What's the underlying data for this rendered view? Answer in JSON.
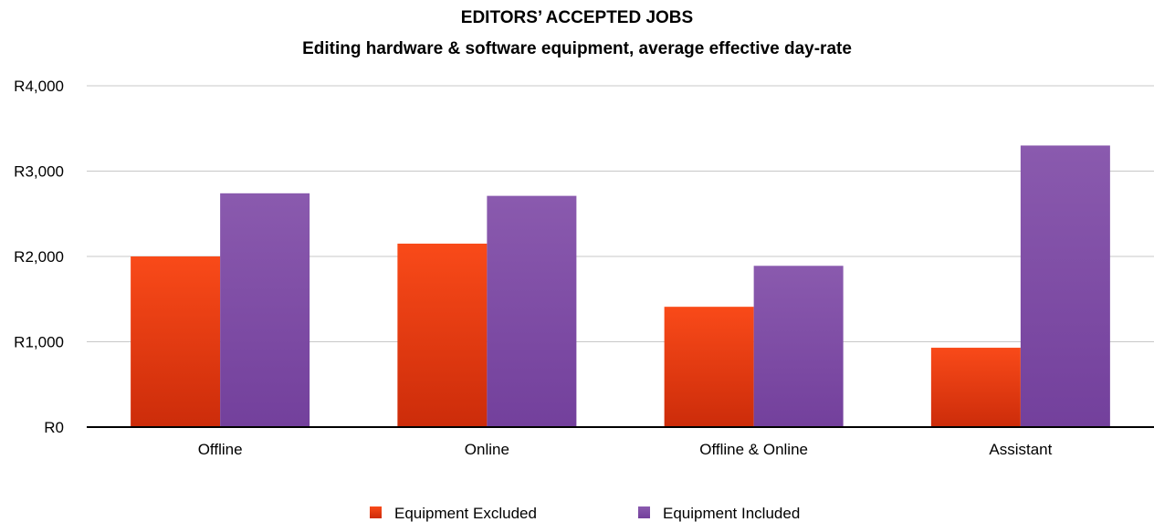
{
  "chart_data": {
    "type": "bar",
    "title": "EDITORS’ ACCEPTED JOBS",
    "subtitle": "Editing hardware & software equipment, average effective day-rate",
    "categories": [
      "Offline",
      "Online",
      "Offline & Online",
      "Assistant"
    ],
    "series": [
      {
        "name": "Equipment Excluded",
        "color": "#e8441a",
        "values": [
          2000,
          2150,
          1410,
          930
        ]
      },
      {
        "name": "Equipment Included",
        "color": "#8450a6",
        "values": [
          2740,
          2710,
          1890,
          3300
        ]
      }
    ],
    "ylim": [
      0,
      4000
    ],
    "yticks": [
      {
        "value": 0,
        "label": "R0"
      },
      {
        "value": 1000,
        "label": "R1,000"
      },
      {
        "value": 2000,
        "label": "R2,000"
      },
      {
        "value": 3000,
        "label": "R3,000"
      },
      {
        "value": 4000,
        "label": "R4,000"
      }
    ],
    "grid": true,
    "legend_position": "bottom"
  }
}
